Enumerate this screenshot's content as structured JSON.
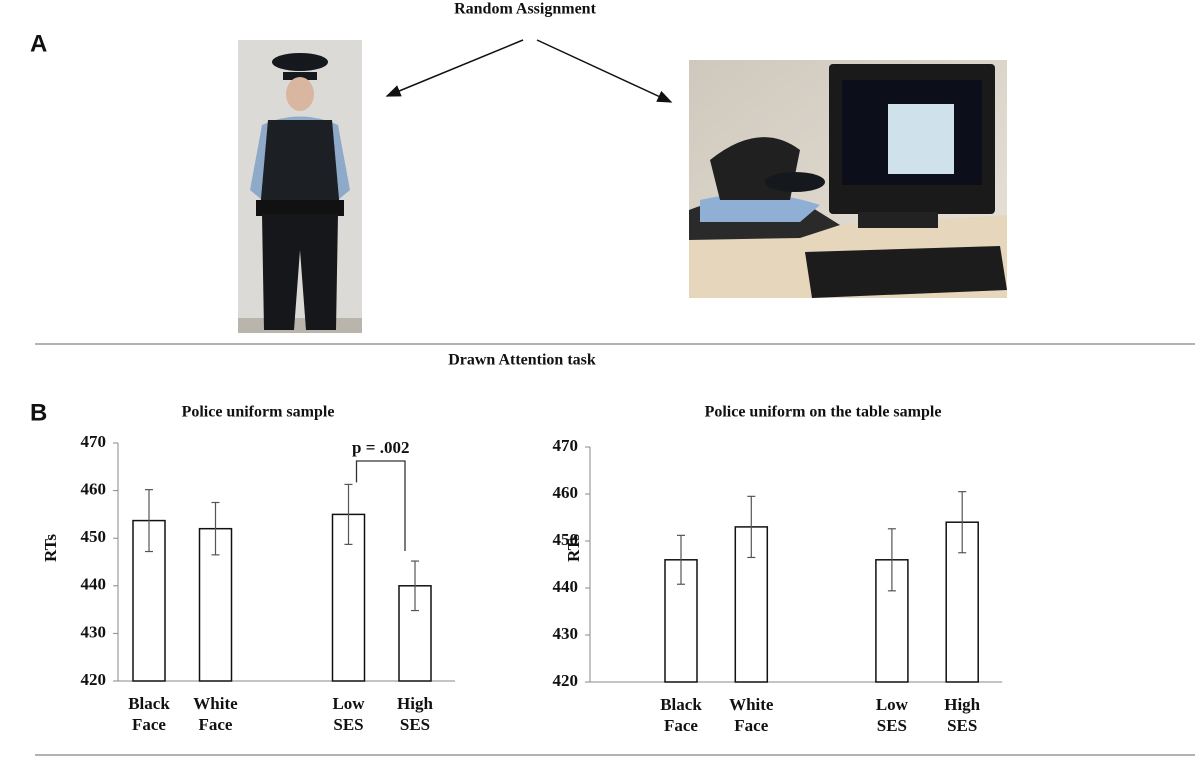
{
  "panel_labels": [
    "A",
    "B"
  ],
  "top_title": "Random Assignment",
  "task_title": "Drawn Attention task",
  "chart_data": [
    {
      "type": "bar",
      "title": "Police uniform sample",
      "y_label": "RTs",
      "categories": [
        [
          "Black",
          "Face"
        ],
        [
          "White",
          "Face"
        ],
        null,
        [
          "Low",
          "SES"
        ],
        [
          "High",
          "SES"
        ]
      ],
      "values": [
        453.7,
        452,
        null,
        455,
        440
      ],
      "errors": [
        6.5,
        5.5,
        null,
        6.3,
        5.2
      ],
      "color": "#ffffff",
      "ylim": [
        420,
        470
      ],
      "yticks": [
        420,
        430,
        440,
        450,
        460,
        470
      ],
      "annotation": "p = .002"
    },
    {
      "type": "bar",
      "title": "Police uniform on the table sample",
      "y_label": "RTs",
      "categories": [
        [
          "Black",
          "Face"
        ],
        [
          "White",
          "Face"
        ],
        null,
        [
          "Low",
          "SES"
        ],
        [
          "High",
          "SES"
        ]
      ],
      "values": [
        446,
        453,
        null,
        446,
        454
      ],
      "errors": [
        5.2,
        6.5,
        null,
        6.6,
        6.5
      ],
      "color": "#ffffff",
      "ylim": [
        420,
        470
      ],
      "yticks": [
        420,
        430,
        440,
        450,
        460,
        470
      ]
    }
  ]
}
